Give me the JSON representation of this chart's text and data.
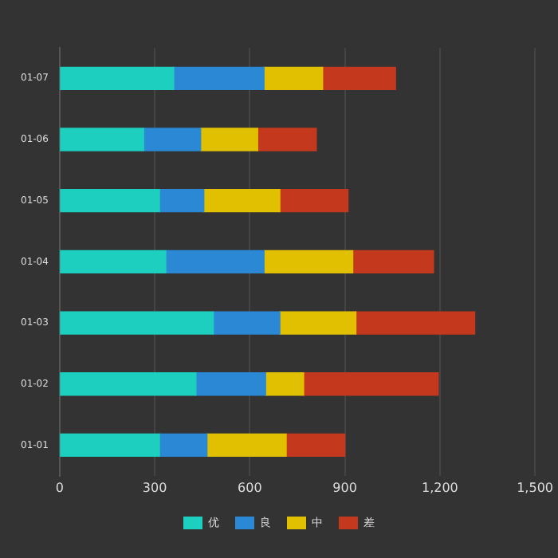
{
  "chart_data": {
    "type": "bar",
    "orientation": "horizontal",
    "stacked": true,
    "categories": [
      "01-07",
      "01-06",
      "01-05",
      "01-04",
      "01-03",
      "01-02",
      "01-01"
    ],
    "series": [
      {
        "name": "优",
        "color": "#1ccfbf",
        "values": [
          360,
          265,
          315,
          335,
          485,
          430,
          315
        ]
      },
      {
        "name": "良",
        "color": "#2a88d4",
        "values": [
          285,
          180,
          140,
          310,
          210,
          220,
          150
        ]
      },
      {
        "name": "中",
        "color": "#e0c000",
        "values": [
          185,
          180,
          240,
          280,
          240,
          120,
          250
        ]
      },
      {
        "name": "差",
        "color": "#c4381e",
        "values": [
          230,
          185,
          215,
          255,
          375,
          425,
          185
        ]
      }
    ],
    "xlim": [
      0,
      1500
    ],
    "xticks": [
      0,
      {
        "value": 300,
        "label": "300"
      },
      {
        "value": 600,
        "label": "600"
      },
      {
        "value": 900,
        "label": "900"
      },
      {
        "value": 1200,
        "label": "1,200"
      },
      {
        "value": 1500,
        "label": "1,500"
      }
    ],
    "grid": "x",
    "legend": "bottom"
  }
}
